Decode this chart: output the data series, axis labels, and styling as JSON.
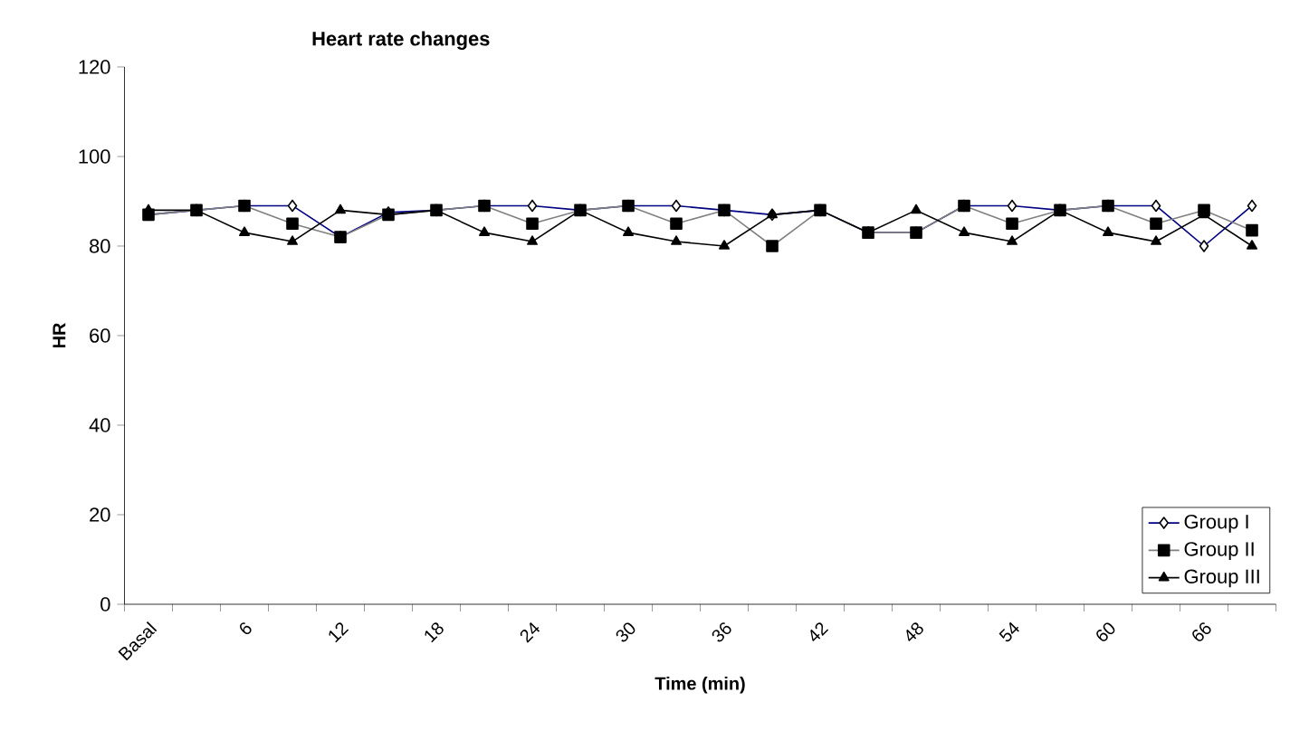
{
  "chart_data": {
    "type": "line",
    "title": "Heart rate changes",
    "xlabel": "Time (min)",
    "ylabel": "HR",
    "categories": [
      "Basal",
      null,
      "6",
      null,
      "12",
      null,
      "18",
      null,
      "24",
      null,
      "30",
      null,
      "36",
      null,
      "42",
      null,
      "48",
      null,
      "54",
      null,
      "60",
      null,
      "66",
      null
    ],
    "series": [
      {
        "name": "Group I",
        "color": "#000080",
        "marker": "diamond",
        "values": [
          87,
          88,
          89,
          89,
          82,
          87.5,
          88,
          89,
          89,
          88,
          89,
          89,
          88,
          87,
          88,
          83,
          83,
          89,
          89,
          88,
          89,
          89,
          80,
          89
        ]
      },
      {
        "name": "Group II",
        "color": "#808080",
        "marker": "square",
        "values": [
          87,
          88,
          89,
          85,
          82,
          87,
          88,
          89,
          85,
          88,
          89,
          85,
          88,
          80,
          88,
          83,
          83,
          89,
          85,
          88,
          89,
          85,
          88,
          83.5
        ]
      },
      {
        "name": "Group III",
        "color": "#000000",
        "marker": "triangle",
        "values": [
          88,
          88,
          83,
          81,
          88,
          87,
          88,
          83,
          81,
          88,
          83,
          81,
          80,
          87,
          88,
          83,
          88,
          83,
          81,
          88,
          83,
          81,
          87,
          80
        ]
      }
    ],
    "ylim": [
      0,
      120
    ],
    "yticks": [
      0,
      20,
      40,
      60,
      80,
      100,
      120
    ],
    "grid": false,
    "legend": "bottom right",
    "line_style": "solid"
  }
}
